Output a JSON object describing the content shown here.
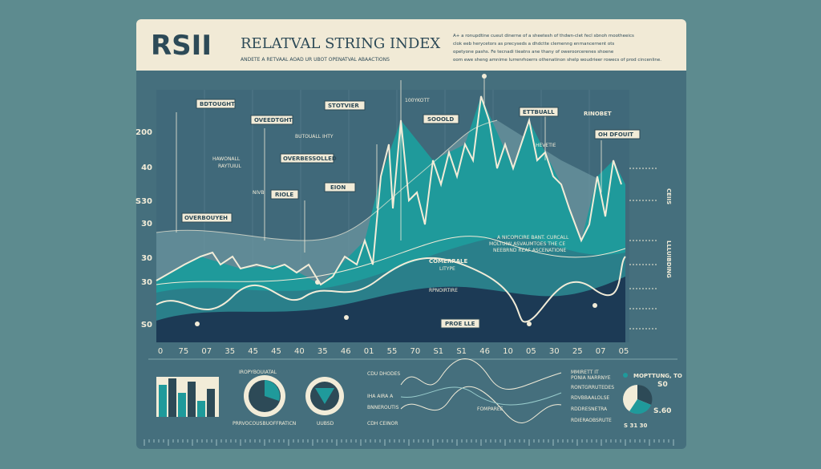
{
  "header": {
    "title": "RSII",
    "heading": "RELATVAL STRING INDEX",
    "subtitle": "ANDETE A RETVAAL AOAD UR UBOT OPENATVAL ABAACTIONS",
    "description": [
      "A+ a ronupdtine cueut dinerne of a sheetesh of thdwn-clet fecl sbnoh mootheeics",
      "clok eeb herycetors as precyseds a dhdctte clemenng enrnancernent ots",
      "opetyone pashs. Fe tecnadi tieatns ane thany of oweroorcerenes shoene",
      "oom ewe sheng amnime lurrenrhoerrs othenatinon shelp woudrieer rowecs of prod cincenline."
    ]
  },
  "annotations": {
    "bdtought": "BDTOUGHT",
    "oveedtght": "OVEEDTGHT",
    "stotvier": "STOTVIER",
    "toyk": "100YKOTT",
    "soold": "SOOOLD",
    "ettbuall": "ETTBUALL",
    "rinobet": "RINOBET",
    "ohdfouit": "OH DFOUIT",
    "hawonall": "HAWONALL",
    "raytuiul": "RAYTUIUL",
    "butouall": "BUTOUALL IHTY",
    "overbessolled": "OVERBESSOLLED",
    "nivb": "NIVB",
    "riole": "RIOLE",
    "eion": "EION",
    "overbouyeh": "OVERBOUYEH",
    "hevetie": "HEVETIE",
    "comerrale": "COMERRALE",
    "litype": "LITYPE",
    "rpnoirtire": "RPNOIRTIRE",
    "proelle": "PROE LLE",
    "note": [
      "A NICOPICIRE BANT. CURCALL",
      "MOLTUIW ASVAUMTOES THE CE",
      "NEEBRND REAF ASCENATIONE"
    ]
  },
  "y_labels": [
    "200",
    "40",
    "S30",
    "30",
    "30",
    "30",
    "S0"
  ],
  "x_labels": [
    "0",
    "75",
    "07",
    "35",
    "45",
    "45",
    "40",
    "35",
    "46",
    "01",
    "55",
    "70",
    "S1",
    "S1",
    "46",
    "10",
    "05",
    "30",
    "25",
    "07",
    "05"
  ],
  "side_labels": [
    "CEIIS",
    "LLLUIBDING"
  ],
  "bottom": {
    "gauge_title": "IROPYBOUIATAL",
    "gauge_caption": "PRRVOCOUSBUOFFRATICN",
    "gauge_small": "UUBSD",
    "legend": [
      "CDU DHODES",
      "IHA AIRA A",
      "BNNEROUTIS",
      "CDH CEINOR"
    ],
    "spark_label": "FOMPAREE",
    "right_notes": [
      "MMIRETT IT",
      "PONIA NARRNYE",
      "RONTGRRUTEDES",
      "RDVBBAALOLSE",
      "RDDRESNETRA",
      "RDIERAOBSRUTE"
    ],
    "monitor": "MOPTTUNG, TO",
    "val1": "S0",
    "val2": "S.60",
    "val3": "S 31 30"
  }
}
